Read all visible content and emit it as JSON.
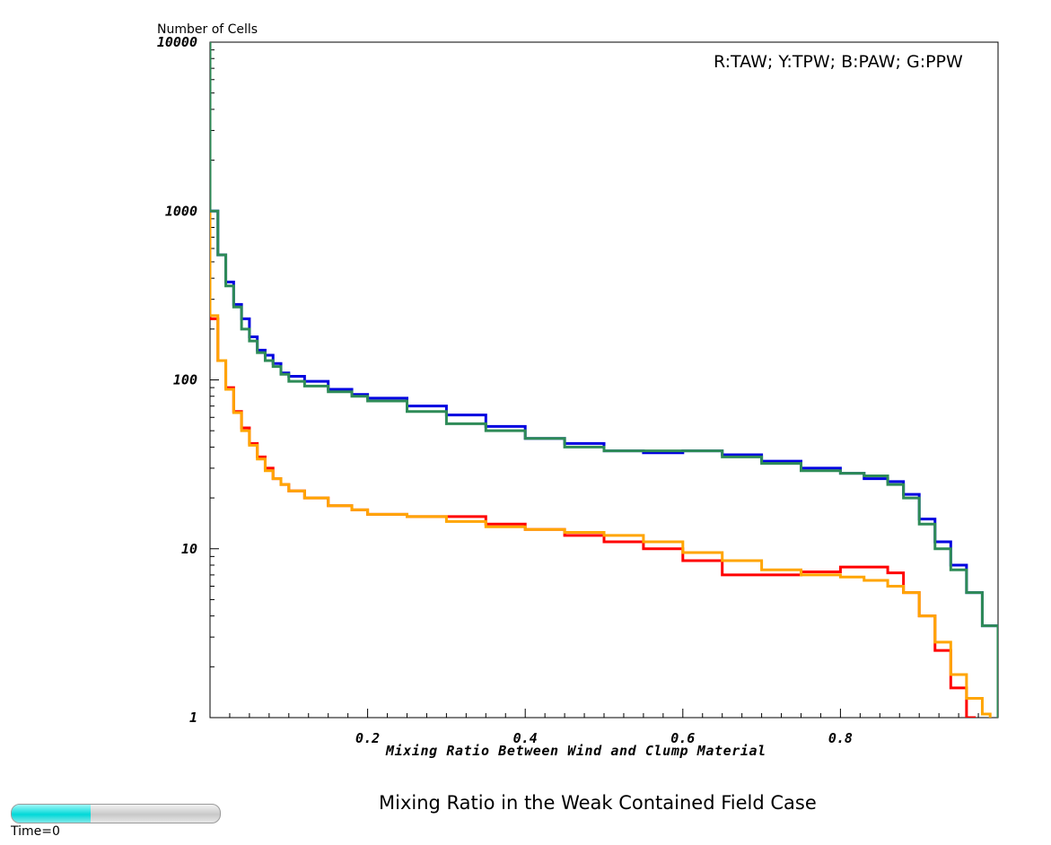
{
  "chart_data": {
    "type": "line",
    "ylabel": "Number of Cells",
    "xlabel": "Mixing Ratio Between Wind and Clump Material",
    "legend_text": "R:TAW; Y:TPW; B:PAW; G:PPW",
    "xlim": [
      0.0,
      1.0
    ],
    "ylim": [
      1,
      10000
    ],
    "yscale": "log",
    "xticks": [
      0.2,
      0.4,
      0.6,
      0.8
    ],
    "xtick_labels": [
      "0.2",
      "0.4",
      "0.6",
      "0.8"
    ],
    "yticks": [
      1,
      10,
      100,
      1000,
      10000
    ],
    "ytick_labels": [
      "1",
      "10",
      "100",
      "1000",
      "10000"
    ],
    "series": [
      {
        "name": "R",
        "color": "#ff0000",
        "x": [
          0.0,
          0.01,
          0.02,
          0.03,
          0.04,
          0.05,
          0.06,
          0.07,
          0.08,
          0.09,
          0.1,
          0.12,
          0.15,
          0.18,
          0.2,
          0.25,
          0.3,
          0.35,
          0.4,
          0.45,
          0.5,
          0.55,
          0.6,
          0.65,
          0.7,
          0.75,
          0.8,
          0.83,
          0.86,
          0.88,
          0.9,
          0.92,
          0.94,
          0.96
        ],
        "y": [
          230,
          130,
          90,
          65,
          52,
          42,
          35,
          30,
          26,
          24,
          22,
          20,
          18,
          17,
          16,
          15.5,
          15.5,
          14,
          13,
          12,
          11,
          10,
          8.5,
          7,
          7,
          7.3,
          7.8,
          7.8,
          7.2,
          5.5,
          4,
          2.5,
          1.5,
          1.0
        ]
      },
      {
        "name": "Y",
        "color": "#ffa500",
        "x": [
          0.0,
          0.01,
          0.02,
          0.03,
          0.04,
          0.05,
          0.06,
          0.07,
          0.08,
          0.09,
          0.1,
          0.12,
          0.15,
          0.18,
          0.2,
          0.25,
          0.3,
          0.35,
          0.4,
          0.45,
          0.5,
          0.55,
          0.6,
          0.65,
          0.7,
          0.75,
          0.8,
          0.83,
          0.86,
          0.88,
          0.9,
          0.92,
          0.94,
          0.96,
          0.98
        ],
        "y": [
          240,
          130,
          88,
          64,
          50,
          41,
          34,
          29,
          26,
          24,
          22,
          20,
          18,
          17,
          16,
          15.5,
          14.5,
          13.5,
          13,
          12.5,
          12,
          11,
          9.5,
          8.5,
          7.5,
          7,
          6.8,
          6.5,
          6,
          5.5,
          4,
          2.8,
          1.8,
          1.3,
          1.05
        ]
      },
      {
        "name": "B",
        "color": "#0000e0",
        "x": [
          0.0,
          0.01,
          0.02,
          0.03,
          0.04,
          0.05,
          0.06,
          0.07,
          0.08,
          0.09,
          0.1,
          0.12,
          0.15,
          0.18,
          0.2,
          0.25,
          0.3,
          0.35,
          0.4,
          0.45,
          0.5,
          0.55,
          0.6,
          0.65,
          0.7,
          0.75,
          0.8,
          0.83,
          0.86,
          0.88,
          0.9,
          0.92,
          0.94,
          0.96,
          0.98,
          1.0
        ],
        "y": [
          1000,
          550,
          380,
          280,
          230,
          180,
          150,
          140,
          125,
          110,
          105,
          98,
          88,
          82,
          78,
          70,
          62,
          53,
          45,
          42,
          38,
          37,
          38,
          36,
          33,
          30,
          28,
          26,
          25,
          21,
          15,
          11,
          8,
          5.5,
          3.5,
          2.6
        ]
      },
      {
        "name": "G",
        "color": "#2e8b57",
        "x": [
          0.0,
          0.01,
          0.02,
          0.03,
          0.04,
          0.05,
          0.06,
          0.07,
          0.08,
          0.09,
          0.1,
          0.12,
          0.15,
          0.18,
          0.2,
          0.25,
          0.3,
          0.35,
          0.4,
          0.45,
          0.5,
          0.55,
          0.6,
          0.65,
          0.7,
          0.75,
          0.8,
          0.83,
          0.86,
          0.88,
          0.9,
          0.92,
          0.94,
          0.96,
          0.98,
          1.0
        ],
        "y": [
          1000,
          550,
          360,
          270,
          200,
          170,
          145,
          130,
          120,
          108,
          98,
          92,
          85,
          80,
          75,
          65,
          55,
          50,
          45,
          40,
          38,
          38,
          38,
          35,
          32,
          29,
          28,
          27,
          24,
          20,
          14,
          10,
          7.5,
          5.5,
          3.5,
          2.0
        ]
      }
    ]
  },
  "time_slider": {
    "label": "Time=0",
    "fraction": 0.38
  },
  "caption": "Mixing Ratio in the Weak Contained Field Case"
}
